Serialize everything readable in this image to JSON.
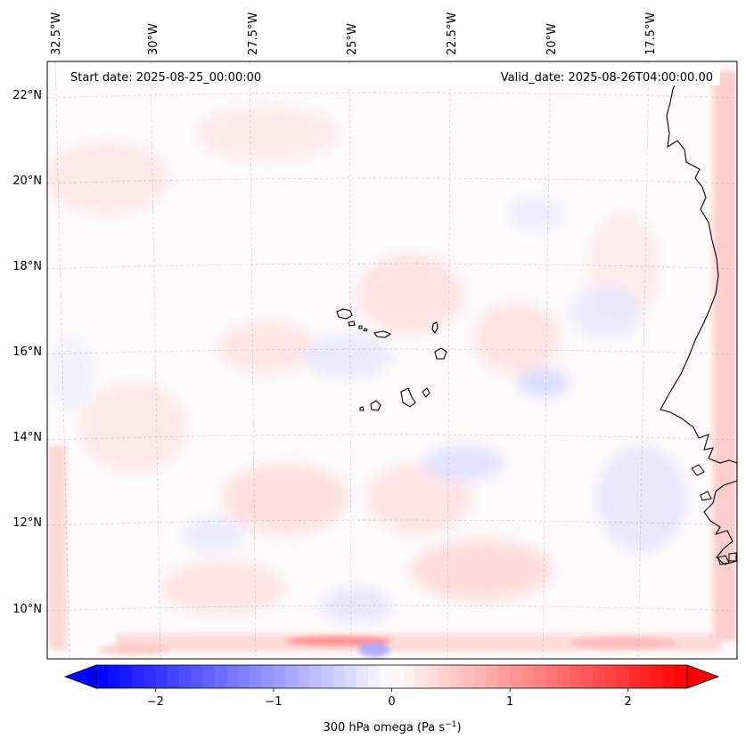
{
  "map": {
    "start_label": "Start date: 2025-08-25_00:00:00",
    "valid_label": "Valid_date: 2025-08-26T04:00:00.00",
    "lon_labels": [
      "32.5°W",
      "30°W",
      "27.5°W",
      "25°W",
      "22.5°W",
      "20°W",
      "17.5°W"
    ],
    "lat_labels": [
      "22°N",
      "20°N",
      "18°N",
      "16°N",
      "14°N",
      "12°N",
      "10°N"
    ],
    "field": "300 hPa omega",
    "coastline_color": "#000000",
    "gridline_color": "#b0b0b0"
  },
  "colorbar": {
    "label_text": "300 hPa omega (Pa s",
    "label_exponent": "−1",
    "label_close": ")",
    "ticks": [
      "−2",
      "−1",
      "0",
      "1",
      "2"
    ],
    "tick_values": [
      -2,
      -1,
      0,
      1,
      2
    ],
    "vmin": -2.5,
    "vmax": 2.5,
    "levels": 50,
    "cmap": "bwr",
    "min_color": "#0000ff",
    "mid_color": "#ffffff",
    "max_color": "#ff0000"
  }
}
